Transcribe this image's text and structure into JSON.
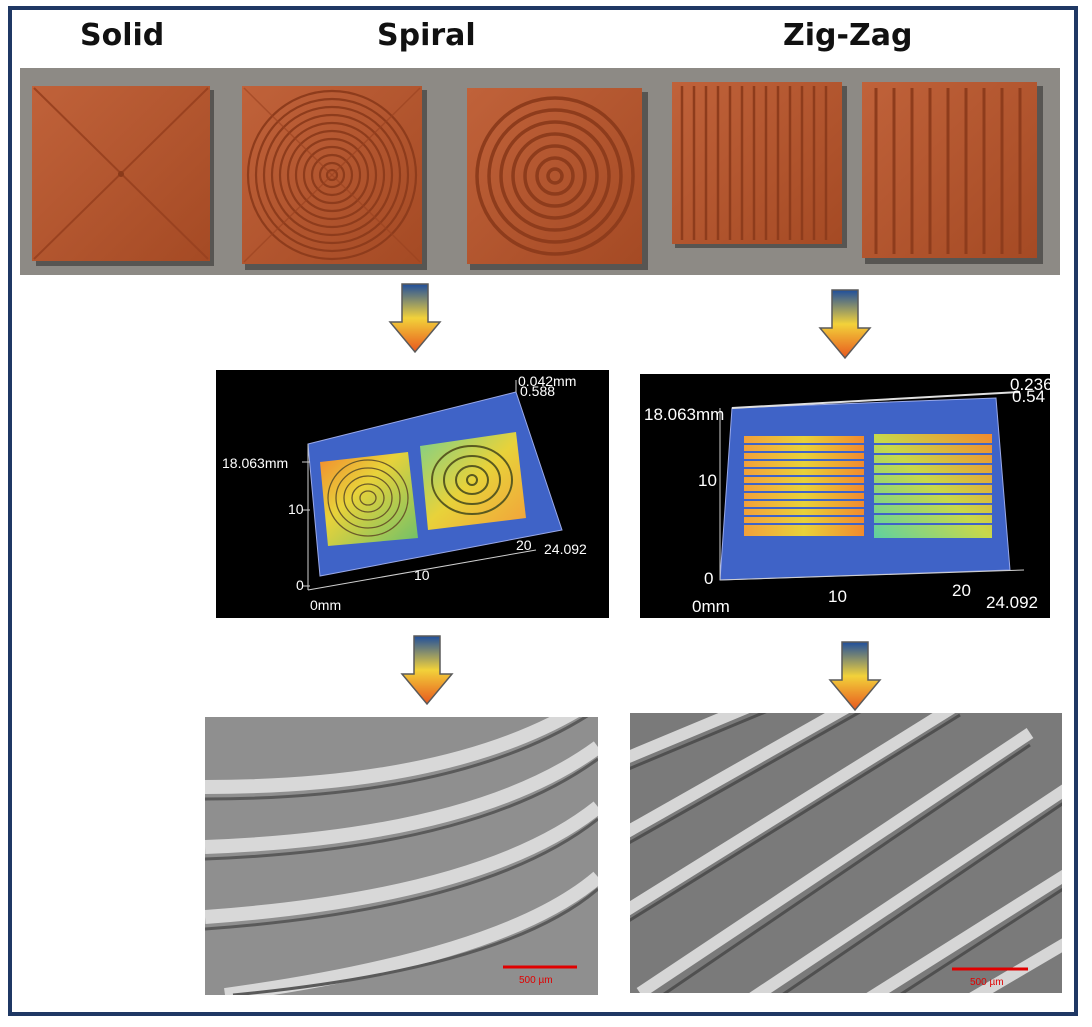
{
  "headers": {
    "solid": "Solid",
    "spiral": "Spiral",
    "zigzag": "Zig-Zag"
  },
  "profile_spiral": {
    "y_max": "18.063mm",
    "y_mid": "10",
    "y_zero": "0",
    "origin": "0mm",
    "x_mid": "10",
    "x_20": "20",
    "x_max": "24.092",
    "z_top1": "0.042mm",
    "z_top2": "0.588"
  },
  "profile_zigzag": {
    "y_max": "18.063mm",
    "y_mid": "10",
    "y_zero": "0",
    "origin": "0mm",
    "x_mid": "10",
    "x_20": "20",
    "x_max": "24.092",
    "z_top1": "0.236",
    "z_top2": "0.54"
  },
  "sem_spiral": {
    "scale": "500 µm"
  },
  "sem_zigzag": {
    "scale": "500 µm"
  },
  "colors": {
    "frame": "#1f3864",
    "clay": "#b4562e",
    "arrow_top": "#1f4e9c",
    "arrow_mid": "#f2d23a",
    "arrow_bottom": "#e8571e",
    "scale_bar": "#e00000"
  }
}
